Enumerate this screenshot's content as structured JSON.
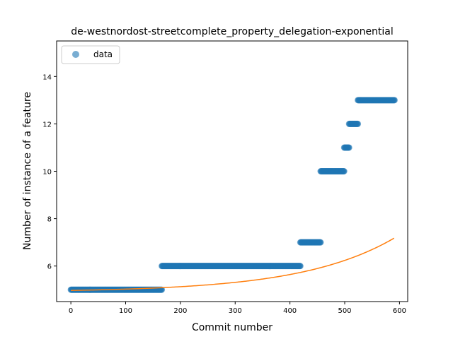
{
  "chart_data": {
    "type": "scatter",
    "title": "de-westnordost-streetcomplete_property_delegation-exponential",
    "xlabel": "Commit number",
    "ylabel": "Number of instance of a feature",
    "xlim": [
      -26,
      615
    ],
    "ylim": [
      4.5,
      15.5
    ],
    "xticks": [
      0,
      100,
      200,
      300,
      400,
      500,
      600
    ],
    "yticks": [
      6,
      8,
      10,
      12,
      14
    ],
    "grid": false,
    "legend": {
      "placement": "top-left",
      "entries": [
        "data"
      ]
    },
    "series": [
      {
        "name": "data",
        "kind": "points",
        "color": "#1f77b4",
        "segments": [
          {
            "x_start": 0,
            "x_end": 166,
            "y": 5
          },
          {
            "x_start": 166,
            "x_end": 419,
            "y": 6
          },
          {
            "x_start": 419,
            "x_end": 456,
            "y": 7
          },
          {
            "x_start": 456,
            "x_end": 499,
            "y": 10
          },
          {
            "x_start": 499,
            "x_end": 508,
            "y": 11
          },
          {
            "x_start": 508,
            "x_end": 524,
            "y": 12
          },
          {
            "x_start": 524,
            "x_end": 591,
            "y": 13
          }
        ]
      },
      {
        "name": "",
        "kind": "fit-line",
        "color": "#ff7f0e",
        "function": "exponential",
        "a": 4.9,
        "b": 0.07,
        "k": 0.0059,
        "x_range": [
          0,
          590
        ]
      }
    ]
  }
}
